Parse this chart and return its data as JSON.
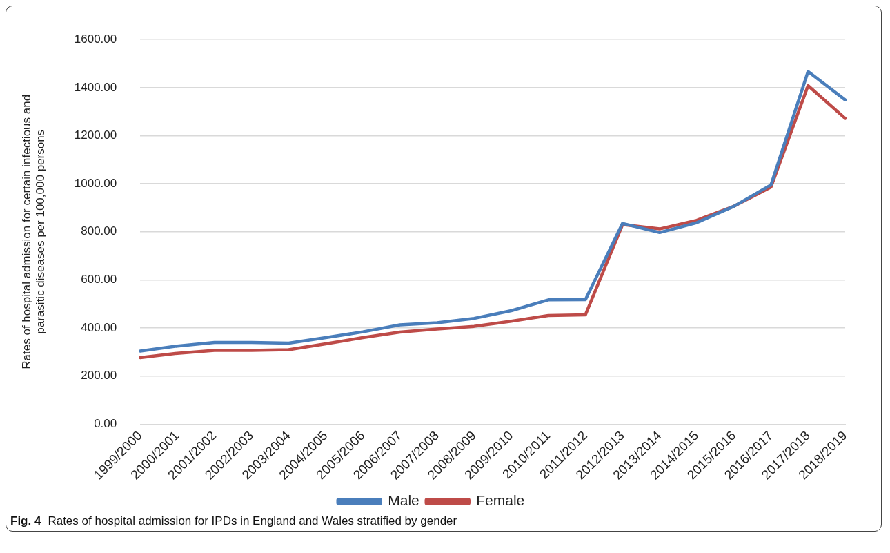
{
  "chart_data": {
    "type": "line",
    "ylabel": "Rates of hospital admission for certain infectious and parasitic diseases per 100,000 persons",
    "categories": [
      "1999/2000",
      "2000/2001",
      "2001/2002",
      "2002/2003",
      "2003/2004",
      "2004/2005",
      "2005/2006",
      "2006/2007",
      "2007/2008",
      "2008/2009",
      "2009/2010",
      "2010/2011",
      "2011/2012",
      "2012/2013",
      "2013/2014",
      "2014/2015",
      "2015/2016",
      "2016/2017",
      "2017/2018",
      "2018/2019"
    ],
    "series": [
      {
        "name": "Male",
        "color": "#4a7ebb",
        "values": [
          304,
          325,
          340,
          340,
          337,
          360,
          384,
          413,
          422,
          440,
          472,
          517,
          518,
          835,
          797,
          838,
          906,
          995,
          1467,
          1349
        ]
      },
      {
        "name": "Female",
        "color": "#be4b48",
        "values": [
          277,
          295,
          307,
          307,
          310,
          334,
          360,
          383,
          396,
          407,
          428,
          452,
          455,
          830,
          812,
          848,
          906,
          986,
          1408,
          1272
        ]
      }
    ],
    "ylim": [
      0,
      1600
    ],
    "yticks": [
      {
        "value": 0,
        "label": "0.00"
      },
      {
        "value": 200,
        "label": "200.00"
      },
      {
        "value": 400,
        "label": "400.00"
      },
      {
        "value": 600,
        "label": "600.00"
      },
      {
        "value": 800,
        "label": "800.00"
      },
      {
        "value": 1000,
        "label": "1000.00"
      },
      {
        "value": 1200,
        "label": "1200.00"
      },
      {
        "value": 1400,
        "label": "1400.00"
      },
      {
        "value": 1600,
        "label": "1600.00"
      }
    ],
    "grid": "y",
    "legend": "bottom",
    "marker": "none",
    "line_style": "solid",
    "annotations": [
      "Fig. 4",
      "Rates of hospital admission for IPDs in England and Wales stratified by gender"
    ]
  }
}
